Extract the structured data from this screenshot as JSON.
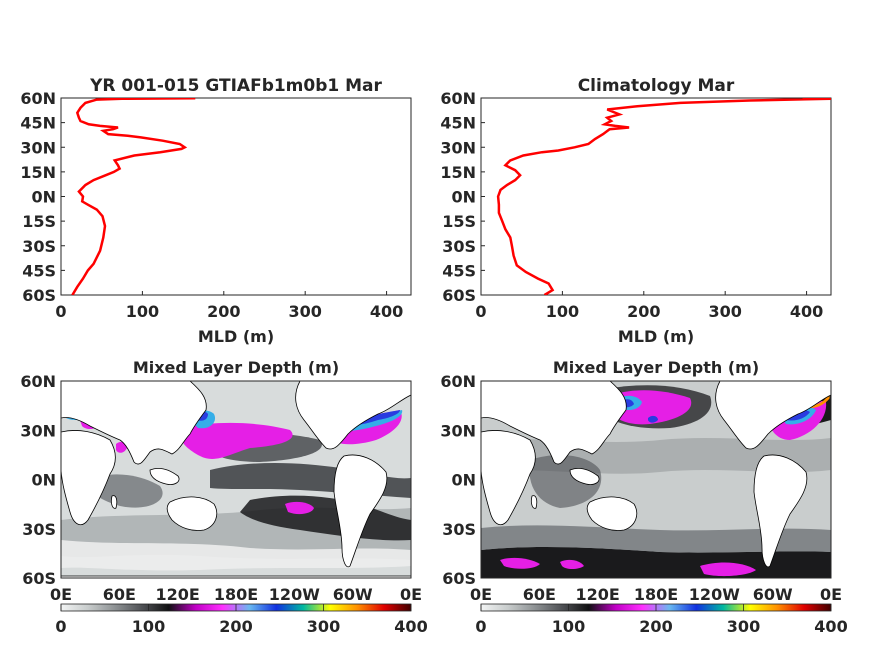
{
  "chart_data": [
    {
      "type": "line",
      "title": "YR 001-015 GTIAFb1m0b1 Mar",
      "xlabel": "MLD (m)",
      "ylabel": "",
      "xlim": [
        0,
        430
      ],
      "ylim": [
        -60,
        60
      ],
      "x_ticks": [
        "0",
        "100",
        "200",
        "300",
        "400"
      ],
      "y_ticks": [
        "60N",
        "45N",
        "30N",
        "15N",
        "0N",
        "15S",
        "30S",
        "45S",
        "60S"
      ],
      "series_color": "#ff0000",
      "grid": false,
      "series": [
        {
          "points": [
            [
              14,
              -60
            ],
            [
              20,
              -55
            ],
            [
              27,
              -50
            ],
            [
              33,
              -45
            ],
            [
              40,
              -41
            ],
            [
              48,
              -33
            ],
            [
              52,
              -25
            ],
            [
              54,
              -18
            ],
            [
              51,
              -12
            ],
            [
              44,
              -8
            ],
            [
              33,
              -5
            ],
            [
              26,
              -3
            ],
            [
              27,
              0
            ],
            [
              22,
              3
            ],
            [
              30,
              7
            ],
            [
              40,
              10
            ],
            [
              55,
              13
            ],
            [
              65,
              15
            ],
            [
              72,
              17
            ],
            [
              70,
              19
            ],
            [
              66,
              22
            ],
            [
              90,
              25
            ],
            [
              122,
              27
            ],
            [
              148,
              29
            ],
            [
              152,
              30
            ],
            [
              146,
              32
            ],
            [
              125,
              34
            ],
            [
              98,
              36
            ],
            [
              82,
              37
            ],
            [
              58,
              38
            ],
            [
              52,
              40
            ],
            [
              64,
              41
            ],
            [
              70,
              42
            ],
            [
              48,
              43
            ],
            [
              34,
              44
            ],
            [
              24,
              46
            ],
            [
              22,
              48
            ],
            [
              20,
              51
            ],
            [
              24,
              54
            ],
            [
              30,
              57
            ],
            [
              44,
              59
            ],
            [
              75,
              59.5
            ],
            [
              165,
              59.8
            ]
          ]
        }
      ]
    },
    {
      "type": "line",
      "title": "Climatology Mar",
      "xlabel": "MLD (m)",
      "ylabel": "",
      "xlim": [
        0,
        430
      ],
      "ylim": [
        -60,
        60
      ],
      "x_ticks": [
        "0",
        "100",
        "200",
        "300",
        "400"
      ],
      "y_ticks": [
        "60N",
        "45N",
        "30N",
        "15N",
        "0N",
        "15S",
        "30S",
        "45S",
        "60S"
      ],
      "series_color": "#ff0000",
      "grid": false,
      "series": [
        {
          "points": [
            [
              78,
              -60
            ],
            [
              88,
              -57
            ],
            [
              83,
              -53
            ],
            [
              70,
              -50
            ],
            [
              55,
              -46
            ],
            [
              44,
              -42
            ],
            [
              40,
              -36
            ],
            [
              38,
              -30
            ],
            [
              36,
              -25
            ],
            [
              30,
              -20
            ],
            [
              26,
              -15
            ],
            [
              22,
              -10
            ],
            [
              22,
              -5
            ],
            [
              21,
              0
            ],
            [
              24,
              4
            ],
            [
              32,
              7
            ],
            [
              42,
              10
            ],
            [
              48,
              13
            ],
            [
              42,
              16
            ],
            [
              30,
              19
            ],
            [
              36,
              22
            ],
            [
              52,
              25
            ],
            [
              75,
              27
            ],
            [
              95,
              28
            ],
            [
              115,
              30
            ],
            [
              132,
              32
            ],
            [
              140,
              35
            ],
            [
              150,
              38
            ],
            [
              158,
              41
            ],
            [
              182,
              42
            ],
            [
              165,
              43
            ],
            [
              152,
              44
            ],
            [
              160,
              46
            ],
            [
              155,
              48
            ],
            [
              170,
              50
            ],
            [
              155,
              53
            ],
            [
              192,
              55
            ],
            [
              245,
              57
            ],
            [
              330,
              58.5
            ],
            [
              400,
              59.2
            ],
            [
              430,
              59.6
            ],
            [
              395,
              60
            ]
          ]
        }
      ]
    },
    {
      "type": "heatmap",
      "title": "Mixed Layer Depth (m)",
      "x_ticks": [
        "0E",
        "60E",
        "120E",
        "180E",
        "120W",
        "60W",
        "0E"
      ],
      "y_ticks": [
        "60N",
        "30N",
        "0N",
        "30S",
        "60S"
      ],
      "ylim": [
        -60,
        60
      ],
      "colorbar": {
        "ticks": [
          "0",
          "100",
          "200",
          "300",
          "400"
        ],
        "range": [
          0,
          400
        ]
      },
      "map_colors": {
        "ocean": "#d8dcdc",
        "deep": "#1a1a1c",
        "mid": "#707478",
        "magenta": "#e51fe6",
        "cyan": "#35aee8",
        "blue": "#2a3ce0",
        "land": "#ffffff"
      }
    },
    {
      "type": "heatmap",
      "title": "Mixed Layer Depth (m)",
      "x_ticks": [
        "0E",
        "60E",
        "120E",
        "180E",
        "120W",
        "60W",
        "0E"
      ],
      "y_ticks": [
        "60N",
        "30N",
        "0N",
        "30S",
        "60S"
      ],
      "ylim": [
        -60,
        60
      ],
      "colorbar": {
        "ticks": [
          "0",
          "100",
          "200",
          "300",
          "400"
        ],
        "range": [
          0,
          400
        ]
      },
      "map_colors": {
        "ocean": "#c9cdcd",
        "deep": "#1a1a1c",
        "mid": "#707478",
        "magenta": "#e51fe6",
        "cyan": "#35aee8",
        "blue": "#2a3ce0",
        "land": "#ffffff"
      }
    }
  ],
  "colormap": [
    "#f2f4f4",
    "#c8cccc",
    "#8e9294",
    "#505256",
    "#101012",
    "#c000c6",
    "#ff30ff",
    "#6ab8f0",
    "#1030e0",
    "#00b8a0",
    "#ffff00",
    "#ff9000",
    "#e00000",
    "#400000"
  ]
}
